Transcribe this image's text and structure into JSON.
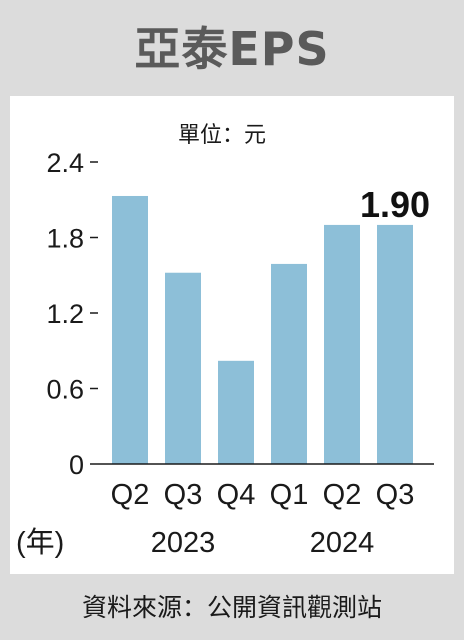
{
  "title": "亞泰EPS",
  "source": "資料來源：公開資訊觀測站",
  "colors": {
    "bar": "#8dbfd8",
    "background": "#dcdcdc",
    "panel": "#ffffff",
    "text": "#1a1a1a"
  },
  "chart_data": {
    "type": "bar",
    "unit_label": "單位：元",
    "x_unit_label": "(年)",
    "categories": [
      "Q2",
      "Q3",
      "Q4",
      "Q1",
      "Q2",
      "Q3"
    ],
    "year_groups": [
      {
        "label": "2023",
        "start": 0,
        "end": 2
      },
      {
        "label": "2024",
        "start": 3,
        "end": 5
      }
    ],
    "values": [
      2.13,
      1.52,
      0.82,
      1.59,
      1.9,
      1.9
    ],
    "data_labels": [
      {
        "index": 5,
        "text": "1.90"
      }
    ],
    "yticks": [
      0,
      0.6,
      1.2,
      1.8,
      2.4
    ],
    "ytick_labels": [
      "0",
      "0.6",
      "1.2",
      "1.8",
      "2.4"
    ],
    "ylim": [
      0,
      2.4
    ],
    "grid": false,
    "legend": "none"
  }
}
